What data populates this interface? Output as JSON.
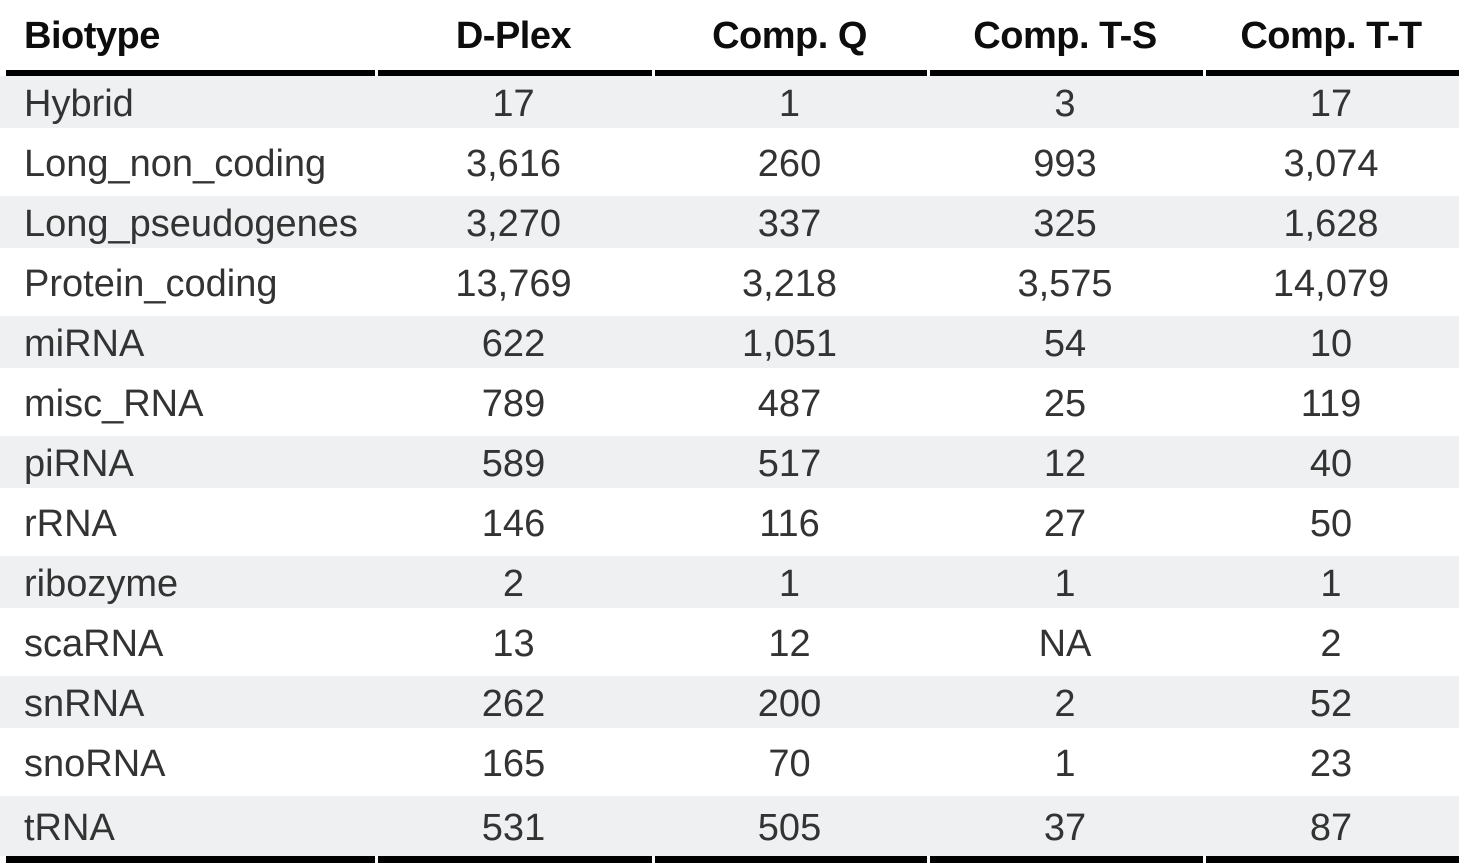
{
  "table": {
    "columns": [
      "Biotype",
      "D-Plex",
      "Comp. Q",
      "Comp. T-S",
      "Comp. T-T"
    ],
    "rows": [
      {
        "biotype": "Hybrid",
        "values": [
          "17",
          "1",
          "3",
          "17"
        ]
      },
      {
        "biotype": "Long_non_coding",
        "values": [
          "3,616",
          "260",
          "993",
          "3,074"
        ]
      },
      {
        "biotype": "Long_pseudogenes",
        "values": [
          "3,270",
          "337",
          "325",
          "1,628"
        ]
      },
      {
        "biotype": "Protein_coding",
        "values": [
          "13,769",
          "3,218",
          "3,575",
          "14,079"
        ]
      },
      {
        "biotype": "miRNA",
        "values": [
          "622",
          "1,051",
          "54",
          "10"
        ]
      },
      {
        "biotype": "misc_RNA",
        "values": [
          "789",
          "487",
          "25",
          "119"
        ]
      },
      {
        "biotype": "piRNA",
        "values": [
          "589",
          "517",
          "12",
          "40"
        ]
      },
      {
        "biotype": "rRNA",
        "values": [
          "146",
          "116",
          "27",
          "50"
        ]
      },
      {
        "biotype": "ribozyme",
        "values": [
          "2",
          "1",
          "1",
          "1"
        ]
      },
      {
        "biotype": "scaRNA",
        "values": [
          "13",
          "12",
          "NA",
          "2"
        ]
      },
      {
        "biotype": "snRNA",
        "values": [
          "262",
          "200",
          "2",
          "52"
        ]
      },
      {
        "biotype": "snoRNA",
        "values": [
          "165",
          "70",
          "1",
          "23"
        ]
      },
      {
        "biotype": "tRNA",
        "values": [
          "531",
          "505",
          "37",
          "87"
        ]
      }
    ],
    "colors": {
      "stripe": "#eef0f1",
      "rule": "#000000",
      "header_text": "#0d0d0d",
      "body_text": "#333333"
    }
  },
  "chart_data": {
    "type": "table",
    "title": "",
    "columns": [
      "Biotype",
      "D-Plex",
      "Comp. Q",
      "Comp. T-S",
      "Comp. T-T"
    ],
    "rows": [
      [
        "Hybrid",
        "17",
        "1",
        "3",
        "17"
      ],
      [
        "Long_non_coding",
        "3,616",
        "260",
        "993",
        "3,074"
      ],
      [
        "Long_pseudogenes",
        "3,270",
        "337",
        "325",
        "1,628"
      ],
      [
        "Protein_coding",
        "13,769",
        "3,218",
        "3,575",
        "14,079"
      ],
      [
        "miRNA",
        "622",
        "1,051",
        "54",
        "10"
      ],
      [
        "misc_RNA",
        "789",
        "487",
        "25",
        "119"
      ],
      [
        "piRNA",
        "589",
        "517",
        "12",
        "40"
      ],
      [
        "rRNA",
        "146",
        "116",
        "27",
        "50"
      ],
      [
        "ribozyme",
        "2",
        "1",
        "1",
        "1"
      ],
      [
        "scaRNA",
        "13",
        "12",
        "NA",
        "2"
      ],
      [
        "snRNA",
        "262",
        "200",
        "2",
        "52"
      ],
      [
        "snoRNA",
        "165",
        "70",
        "1",
        "23"
      ],
      [
        "tRNA",
        "531",
        "505",
        "37",
        "87"
      ]
    ]
  }
}
